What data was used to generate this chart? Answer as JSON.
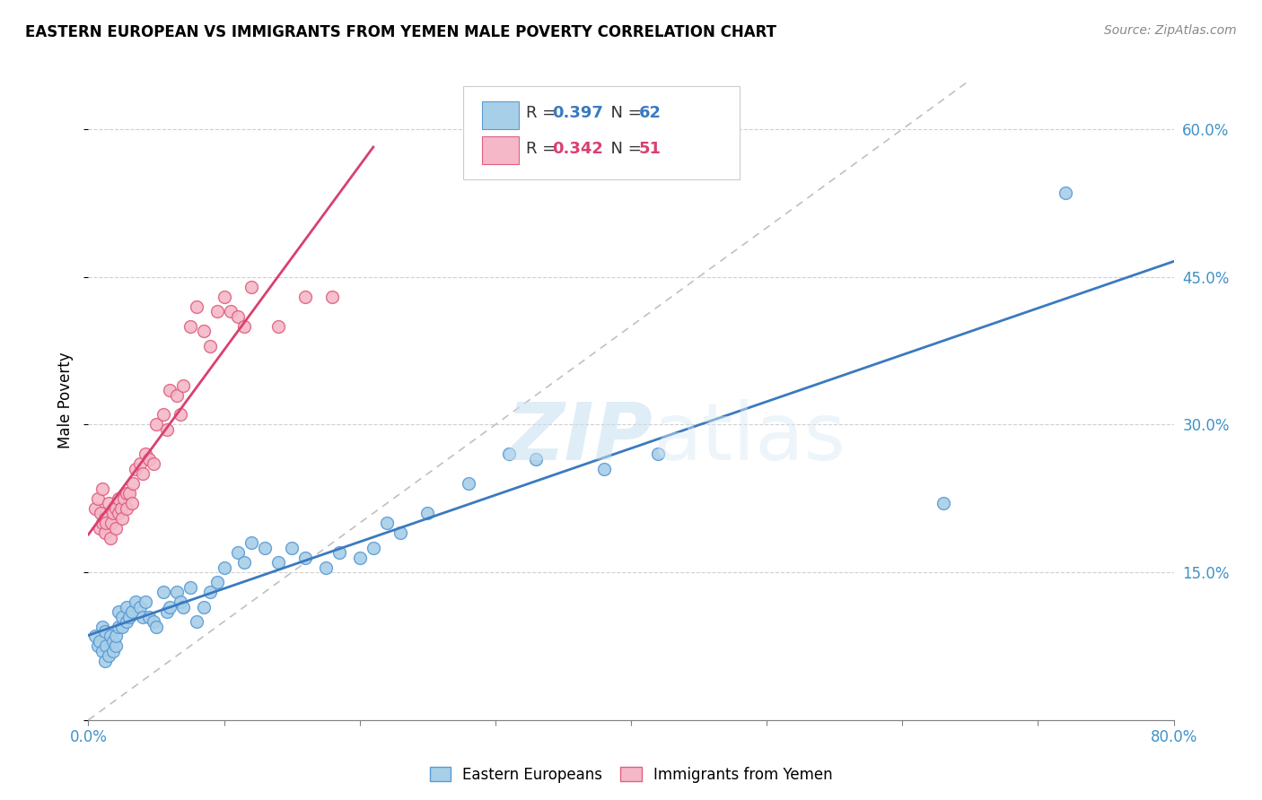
{
  "title": "EASTERN EUROPEAN VS IMMIGRANTS FROM YEMEN MALE POVERTY CORRELATION CHART",
  "source": "Source: ZipAtlas.com",
  "ylabel": "Male Poverty",
  "xlim": [
    0.0,
    0.8
  ],
  "ylim": [
    0.0,
    0.65
  ],
  "color_ee": "#a8cfe8",
  "color_ee_edge": "#5b9bd5",
  "color_yem": "#f4b8c8",
  "color_yem_edge": "#e06080",
  "color_ee_line": "#3a7abf",
  "color_yem_line": "#d94070",
  "color_diag": "#c0c0c0",
  "R_ee": "0.397",
  "N_ee": "62",
  "R_yem": "0.342",
  "N_yem": "51",
  "watermark_zip": "ZIP",
  "watermark_atlas": "atlas",
  "legend_label_ee": "Eastern Europeans",
  "legend_label_yem": "Immigrants from Yemen",
  "ee_x": [
    0.005,
    0.007,
    0.008,
    0.01,
    0.01,
    0.012,
    0.012,
    0.013,
    0.015,
    0.016,
    0.018,
    0.018,
    0.02,
    0.02,
    0.022,
    0.022,
    0.025,
    0.025,
    0.028,
    0.028,
    0.03,
    0.032,
    0.035,
    0.038,
    0.04,
    0.042,
    0.045,
    0.048,
    0.05,
    0.055,
    0.058,
    0.06,
    0.065,
    0.068,
    0.07,
    0.075,
    0.08,
    0.085,
    0.09,
    0.095,
    0.1,
    0.11,
    0.115,
    0.12,
    0.13,
    0.14,
    0.15,
    0.16,
    0.175,
    0.185,
    0.2,
    0.21,
    0.22,
    0.23,
    0.25,
    0.28,
    0.31,
    0.33,
    0.38,
    0.42,
    0.63,
    0.72
  ],
  "ee_y": [
    0.085,
    0.075,
    0.08,
    0.07,
    0.095,
    0.06,
    0.09,
    0.075,
    0.065,
    0.085,
    0.07,
    0.08,
    0.075,
    0.085,
    0.095,
    0.11,
    0.095,
    0.105,
    0.1,
    0.115,
    0.105,
    0.11,
    0.12,
    0.115,
    0.105,
    0.12,
    0.105,
    0.1,
    0.095,
    0.13,
    0.11,
    0.115,
    0.13,
    0.12,
    0.115,
    0.135,
    0.1,
    0.115,
    0.13,
    0.14,
    0.155,
    0.17,
    0.16,
    0.18,
    0.175,
    0.16,
    0.175,
    0.165,
    0.155,
    0.17,
    0.165,
    0.175,
    0.2,
    0.19,
    0.21,
    0.24,
    0.27,
    0.265,
    0.255,
    0.27,
    0.22,
    0.535
  ],
  "yem_x": [
    0.005,
    0.007,
    0.008,
    0.009,
    0.01,
    0.01,
    0.012,
    0.012,
    0.013,
    0.015,
    0.016,
    0.017,
    0.018,
    0.02,
    0.02,
    0.022,
    0.022,
    0.024,
    0.025,
    0.026,
    0.028,
    0.028,
    0.03,
    0.032,
    0.033,
    0.035,
    0.038,
    0.04,
    0.042,
    0.045,
    0.048,
    0.05,
    0.055,
    0.058,
    0.06,
    0.065,
    0.068,
    0.07,
    0.075,
    0.08,
    0.085,
    0.09,
    0.095,
    0.1,
    0.105,
    0.11,
    0.115,
    0.12,
    0.14,
    0.16,
    0.18
  ],
  "yem_y": [
    0.215,
    0.225,
    0.195,
    0.21,
    0.2,
    0.235,
    0.19,
    0.205,
    0.2,
    0.22,
    0.185,
    0.2,
    0.21,
    0.195,
    0.215,
    0.21,
    0.225,
    0.215,
    0.205,
    0.225,
    0.215,
    0.23,
    0.23,
    0.22,
    0.24,
    0.255,
    0.26,
    0.25,
    0.27,
    0.265,
    0.26,
    0.3,
    0.31,
    0.295,
    0.335,
    0.33,
    0.31,
    0.34,
    0.4,
    0.42,
    0.395,
    0.38,
    0.415,
    0.43,
    0.415,
    0.41,
    0.4,
    0.44,
    0.4,
    0.43,
    0.43
  ]
}
